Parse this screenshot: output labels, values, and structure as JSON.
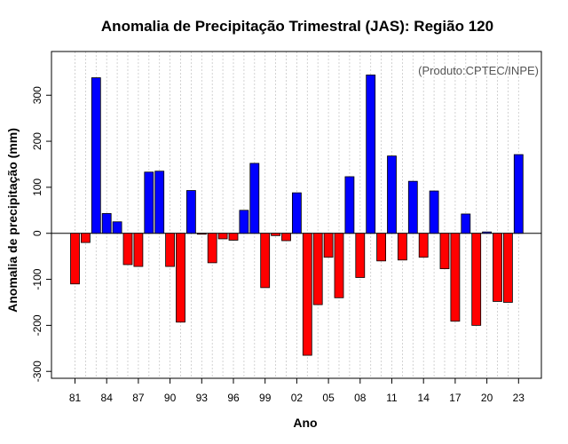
{
  "chart_data": {
    "type": "bar",
    "title": "Anomalia de Precipitação Trimestral (JAS): Região 120",
    "xlabel": "Ano",
    "ylabel": "Anomalia de precipitação (mm)",
    "annotation": "(Produto:CPTEC/INPE)",
    "ylim": [
      -315,
      395
    ],
    "yticks": [
      -300,
      -200,
      -100,
      0,
      100,
      200,
      300
    ],
    "grid": true,
    "positive_color": "#0000ff",
    "negative_color": "#ff0000",
    "x": [
      1981,
      1982,
      1983,
      1984,
      1985,
      1986,
      1987,
      1988,
      1989,
      1990,
      1991,
      1992,
      1993,
      1994,
      1995,
      1996,
      1997,
      1998,
      1999,
      2000,
      2001,
      2002,
      2003,
      2004,
      2005,
      2006,
      2007,
      2008,
      2009,
      2010,
      2011,
      2012,
      2013,
      2014,
      2015,
      2016,
      2017,
      2018,
      2019,
      2020,
      2021,
      2022,
      2023
    ],
    "values": [
      -110,
      -20,
      338,
      43,
      25,
      -68,
      -72,
      133,
      135,
      -72,
      -193,
      93,
      -2,
      -64,
      -12,
      -15,
      50,
      152,
      -118,
      -5,
      -16,
      88,
      -265,
      -155,
      -52,
      -140,
      123,
      -96,
      344,
      -60,
      168,
      -58,
      113,
      -52,
      92,
      -77,
      -191,
      42,
      -200,
      3,
      -148,
      -150,
      171
    ],
    "xtick_labels": [
      "81",
      "84",
      "87",
      "90",
      "93",
      "96",
      "99",
      "02",
      "05",
      "08",
      "11",
      "14",
      "17",
      "20",
      "23"
    ],
    "xtick_years": [
      1981,
      1984,
      1987,
      1990,
      1993,
      1996,
      1999,
      2002,
      2005,
      2008,
      2011,
      2014,
      2017,
      2020,
      2023
    ]
  }
}
